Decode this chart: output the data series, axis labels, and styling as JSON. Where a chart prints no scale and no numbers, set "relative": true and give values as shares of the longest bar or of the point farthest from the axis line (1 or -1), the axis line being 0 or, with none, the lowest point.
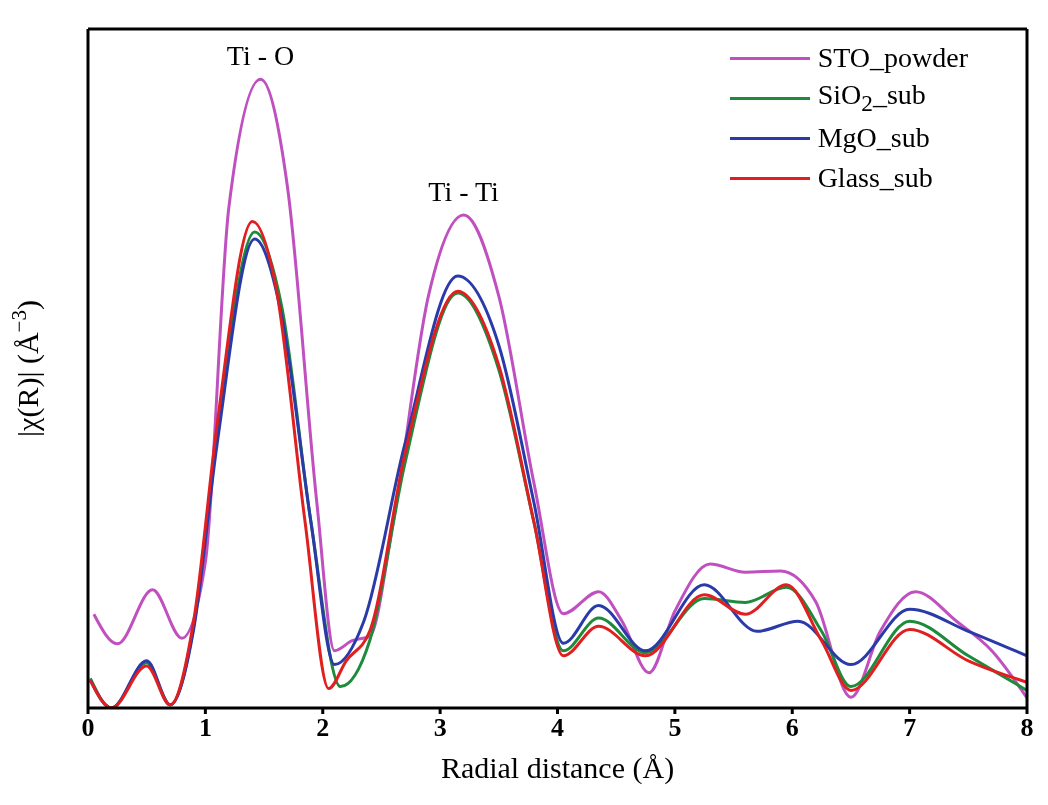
{
  "chart_data": {
    "type": "line",
    "relative": true,
    "xlabel": "Radial distance (Å)",
    "ylabel": "|χ(R)| (Å$^{−3}$)",
    "xlim": [
      0,
      8
    ],
    "xticks": [
      0,
      1,
      2,
      3,
      4,
      5,
      6,
      7,
      8
    ],
    "legend": "top right",
    "annotations": [
      {
        "text": "Ti - O",
        "x": 1.47,
        "y": 1.0
      },
      {
        "text": "Ti - Ti",
        "x": 3.2,
        "y": 0.784
      }
    ],
    "series": [
      {
        "name": "STO_powder",
        "color": "#c050c0",
        "x": [
          0.05,
          0.25,
          0.55,
          0.8,
          1.0,
          1.2,
          1.47,
          1.7,
          1.95,
          2.1,
          2.25,
          2.4,
          2.6,
          2.9,
          3.2,
          3.5,
          3.8,
          4.05,
          4.35,
          4.55,
          4.78,
          5.0,
          5.3,
          5.6,
          5.9,
          6.2,
          6.5,
          6.75,
          7.05,
          7.4,
          7.7,
          8.0
        ],
        "values": [
          0.149,
          0.102,
          0.188,
          0.111,
          0.232,
          0.796,
          1.0,
          0.828,
          0.326,
          0.091,
          0.107,
          0.114,
          0.295,
          0.655,
          0.784,
          0.655,
          0.357,
          0.15,
          0.185,
          0.138,
          0.056,
          0.154,
          0.229,
          0.216,
          0.218,
          0.169,
          0.017,
          0.122,
          0.185,
          0.138,
          0.091,
          0.016
        ]
      },
      {
        "name": "SiO$_{2}$_sub",
        "color": "#1e8a3c",
        "x": [
          0.02,
          0.2,
          0.5,
          0.7,
          0.9,
          1.1,
          1.42,
          1.65,
          1.9,
          2.15,
          2.4,
          2.7,
          3.15,
          3.5,
          3.8,
          4.05,
          4.35,
          4.75,
          5.25,
          5.6,
          5.95,
          6.25,
          6.5,
          7.0,
          7.5,
          8.0
        ],
        "values": [
          0.047,
          0,
          0.072,
          0.005,
          0.13,
          0.436,
          0.757,
          0.639,
          0.295,
          0.034,
          0.107,
          0.389,
          0.66,
          0.538,
          0.295,
          0.091,
          0.143,
          0.088,
          0.174,
          0.168,
          0.192,
          0.122,
          0.034,
          0.138,
          0.083,
          0.028
        ]
      },
      {
        "name": "MgO_sub",
        "color": "#2a3aa8",
        "x": [
          0.02,
          0.2,
          0.5,
          0.7,
          0.9,
          1.1,
          1.42,
          1.65,
          1.9,
          2.1,
          2.35,
          2.7,
          3.15,
          3.5,
          3.8,
          4.05,
          4.35,
          4.75,
          5.25,
          5.7,
          6.05,
          6.5,
          7.0,
          7.5,
          8.0
        ],
        "values": [
          0.044,
          0,
          0.075,
          0.005,
          0.125,
          0.42,
          0.746,
          0.624,
          0.295,
          0.069,
          0.138,
          0.42,
          0.687,
          0.577,
          0.326,
          0.103,
          0.163,
          0.091,
          0.196,
          0.122,
          0.138,
          0.069,
          0.157,
          0.122,
          0.083
        ]
      },
      {
        "name": "Glass_sub",
        "color": "#e02020",
        "x": [
          0.02,
          0.2,
          0.5,
          0.7,
          0.9,
          1.1,
          1.4,
          1.6,
          1.85,
          2.05,
          2.2,
          2.4,
          2.7,
          3.15,
          3.5,
          3.8,
          4.05,
          4.35,
          4.75,
          5.25,
          5.6,
          5.95,
          6.25,
          6.5,
          7.0,
          7.5,
          8.0
        ],
        "values": [
          0.044,
          0,
          0.067,
          0.005,
          0.138,
          0.451,
          0.774,
          0.671,
          0.295,
          0.031,
          0.075,
          0.122,
          0.404,
          0.663,
          0.545,
          0.295,
          0.083,
          0.13,
          0.083,
          0.18,
          0.149,
          0.196,
          0.107,
          0.028,
          0.125,
          0.075,
          0.041
        ]
      }
    ]
  }
}
